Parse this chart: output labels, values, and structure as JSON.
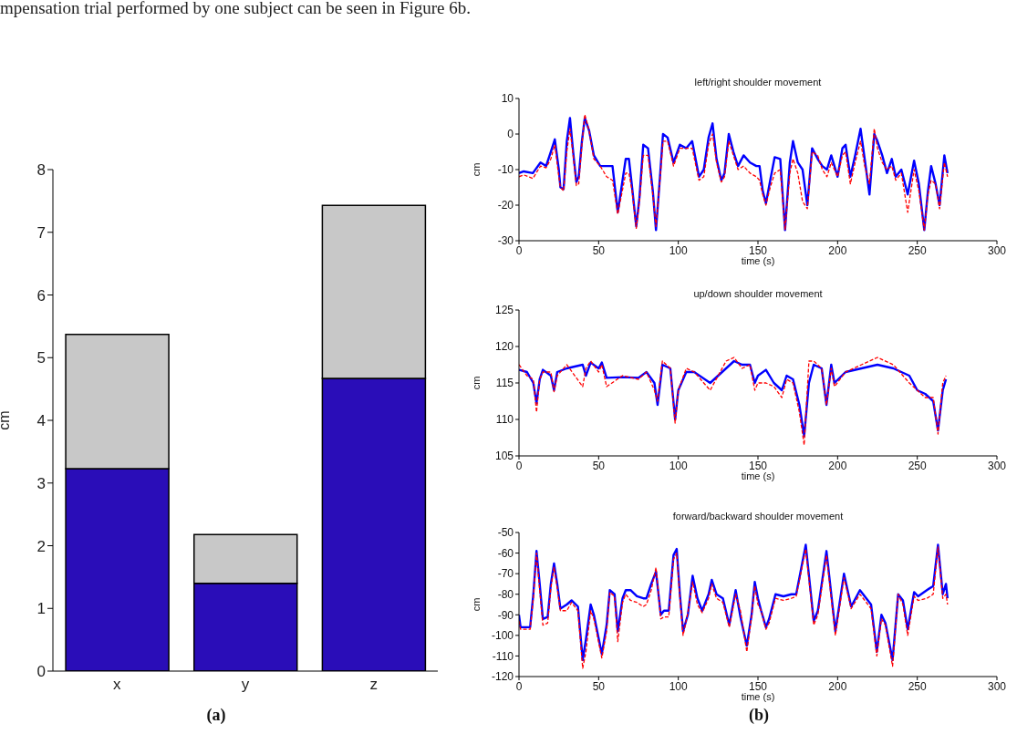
{
  "chart_data": [
    {
      "type": "bar",
      "stacked": true,
      "ylabel": "cm",
      "categories": [
        "x",
        "y",
        "z"
      ],
      "ylim": [
        0,
        8
      ],
      "yticks": [
        0,
        1,
        2,
        3,
        4,
        5,
        6,
        7,
        8
      ],
      "series": [
        {
          "color": "#2a0db8",
          "values": [
            3.23,
            1.4,
            4.67
          ]
        },
        {
          "color": "#c8c8c8",
          "values": [
            2.14,
            0.78,
            2.76
          ]
        }
      ],
      "annotations": [
        "mpensation trial performed by one subject can be seen in Figure 6b.",
        "(a)"
      ]
    },
    {
      "type": "line",
      "title": "left/right shoulder movement",
      "xlabel": "time (s)",
      "ylabel": "cm",
      "xlim": [
        0,
        300
      ],
      "xticks": [
        0,
        50,
        100,
        150,
        200,
        250,
        300
      ],
      "ylim": [
        -30,
        10
      ],
      "yticks": [
        -30,
        -20,
        -10,
        0,
        10
      ],
      "x": [
        0,
        3,
        8.7,
        13.5,
        17,
        20,
        22.5,
        25,
        26,
        28,
        30,
        32,
        34,
        36,
        37.5,
        39.5,
        41.3,
        44,
        47,
        51,
        55,
        58.7,
        62,
        64,
        67,
        69,
        71,
        73.6,
        75.6,
        78,
        81,
        84,
        86,
        88.5,
        90.4,
        93.3,
        97,
        101,
        105,
        108.7,
        113,
        116,
        119,
        121.5,
        124,
        127,
        129,
        131.7,
        134.6,
        137.5,
        141,
        145,
        149,
        151,
        153,
        155,
        157.7,
        160.5,
        164,
        167,
        170,
        172,
        175,
        178,
        181,
        184,
        187.5,
        190.4,
        193.3,
        196,
        200,
        203,
        205,
        208,
        211,
        214.4,
        217,
        220,
        223,
        225,
        228,
        231,
        234,
        236.5,
        240,
        244,
        248,
        251,
        254.4,
        256.7,
        258.7,
        261.5,
        264,
        267,
        269
      ],
      "series": [
        {
          "color": "#0000ff",
          "values": [
            -11,
            -10.5,
            -11,
            -8,
            -9,
            -5,
            -1.5,
            -10,
            -15,
            -15.5,
            -2,
            4.5,
            -5,
            -13.5,
            -12,
            -2,
            4.5,
            1,
            -6,
            -9,
            -9,
            -9,
            -22,
            -16,
            -7,
            -7,
            -15,
            -26,
            -18,
            -3,
            -4,
            -16,
            -27,
            -12,
            0,
            -1,
            -8,
            -3,
            -4,
            -2,
            -12,
            -10,
            -1,
            3,
            -7,
            -13,
            -11,
            0,
            -5,
            -9,
            -6,
            -8,
            -9,
            -9,
            -16,
            -19.5,
            -13,
            -6.5,
            -7,
            -27,
            -8,
            -2,
            -8,
            -10,
            -20,
            -4,
            -7,
            -9,
            -10,
            -6,
            -12,
            -4,
            -3,
            -12,
            -6,
            1.5,
            -7,
            -17,
            0,
            -2,
            -6,
            -11,
            -7,
            -12,
            -10,
            -17,
            -7.5,
            -14,
            -27,
            -16,
            -9,
            -14,
            -20,
            -6,
            -11
          ]
        },
        {
          "color": "#ff0000",
          "line_style": "dashed",
          "values": [
            -12,
            -11.5,
            -12.5,
            -9,
            -9.5,
            -7,
            -3,
            -12,
            -15,
            -16,
            -5,
            1.5,
            -6,
            -14.5,
            -14,
            -3,
            5.5,
            1,
            -7,
            -9,
            -12,
            -13,
            -22.5,
            -18,
            -11,
            -11,
            -16,
            -26.5,
            -19,
            -6,
            -6,
            -17,
            -26,
            -13,
            -2,
            -2,
            -9,
            -4,
            -4,
            -4,
            -13,
            -12,
            -3,
            0,
            -8,
            -13.5,
            -12,
            -2,
            -6,
            -10,
            -9,
            -11,
            -12,
            -13,
            -17,
            -20,
            -15,
            -11,
            -10,
            -27,
            -11,
            -7,
            -11,
            -19,
            -21,
            -5,
            -6,
            -10,
            -12,
            -8,
            -12,
            -6,
            -5,
            -14,
            -8,
            -2,
            -9,
            -14,
            1.5,
            -4,
            -8,
            -10,
            -9,
            -13,
            -11,
            -22,
            -10,
            -16,
            -27,
            -17,
            -13,
            -14,
            -21,
            -8,
            -12
          ]
        }
      ]
    },
    {
      "type": "line",
      "title": "up/down shoulder movement",
      "xlabel": "time (s)",
      "ylabel": "cm",
      "xlim": [
        0,
        300
      ],
      "xticks": [
        0,
        50,
        100,
        150,
        200,
        250,
        300
      ],
      "ylim": [
        105,
        125
      ],
      "yticks": [
        105,
        110,
        115,
        120,
        125
      ],
      "x": [
        0,
        5,
        9,
        11,
        13,
        15,
        20,
        22,
        24,
        30,
        40,
        42,
        45,
        50,
        52,
        55,
        65,
        75,
        80,
        85,
        87,
        90,
        95,
        98,
        100,
        105,
        110,
        120,
        130,
        135,
        140,
        145,
        148,
        150,
        155,
        160,
        165,
        168,
        172,
        176,
        179,
        182,
        185,
        190,
        193,
        196,
        198,
        205,
        215,
        225,
        235,
        245,
        250,
        255,
        260,
        263,
        266,
        268
      ],
      "series": [
        {
          "color": "#0000ff",
          "values": [
            116.8,
            116.5,
            115,
            112.2,
            115.5,
            116.8,
            116,
            114,
            116.5,
            117,
            117.5,
            116,
            117.8,
            117,
            117.8,
            115.7,
            115.8,
            115.7,
            116.5,
            115,
            112,
            117.5,
            117,
            110,
            114,
            116.5,
            116.5,
            115,
            117,
            118,
            117.5,
            117.5,
            115,
            116,
            116.8,
            115,
            114,
            116,
            115.5,
            112,
            107.7,
            115,
            117.5,
            117,
            112,
            117.5,
            115,
            116.5,
            117,
            117.5,
            117,
            116,
            114,
            113.5,
            112.5,
            108.5,
            114,
            115.5
          ]
        },
        {
          "color": "#ff0000",
          "line_style": "dashed",
          "values": [
            117.5,
            116,
            115.5,
            111,
            115.5,
            116.5,
            116.5,
            113.8,
            116,
            117.5,
            114.5,
            117,
            118,
            116.5,
            117.5,
            114.5,
            116,
            115.5,
            116.5,
            114,
            112.5,
            118,
            117,
            109.5,
            114,
            117,
            116.5,
            114,
            118,
            118.5,
            117,
            117.5,
            114,
            115,
            115,
            114.5,
            113,
            115.5,
            115,
            111,
            106.5,
            118,
            118,
            117,
            112,
            117,
            114.5,
            116.5,
            117.5,
            118.5,
            117.5,
            115,
            114,
            113,
            113,
            108,
            115,
            116
          ]
        }
      ]
    },
    {
      "type": "line",
      "title": "forward/backward shoulder movement",
      "xlabel": "time (s)",
      "ylabel": "cm",
      "xlim": [
        0,
        300
      ],
      "xticks": [
        0,
        50,
        100,
        150,
        200,
        250,
        300
      ],
      "ylim": [
        -120,
        -50
      ],
      "yticks": [
        -120,
        -110,
        -100,
        -90,
        -80,
        -70,
        -60,
        -50
      ],
      "x": [
        0,
        1,
        7,
        9,
        11,
        13,
        15,
        18,
        20,
        22,
        24,
        26,
        30,
        33,
        37,
        40,
        42,
        45,
        47,
        52,
        55,
        57,
        60,
        62,
        65,
        67,
        70,
        74,
        78,
        80,
        83,
        86,
        89,
        91,
        94,
        97,
        99,
        101,
        103,
        106,
        109,
        112,
        115,
        119,
        121,
        124,
        128,
        132,
        136,
        139,
        143,
        146,
        148,
        150,
        152,
        155,
        157,
        161,
        166,
        171,
        174,
        180,
        185,
        187.6,
        193,
        198.6,
        204,
        208.5,
        214,
        221,
        224.6,
        227.5,
        230,
        234.5,
        238,
        241,
        244,
        248,
        250.5,
        256,
        260,
        263,
        266,
        268,
        269
      ],
      "series": [
        {
          "color": "#0000ff",
          "values": [
            -90,
            -96,
            -96,
            -80,
            -59,
            -75,
            -92,
            -91,
            -75,
            -65,
            -75,
            -87,
            -85,
            -83,
            -86,
            -112,
            -102,
            -85,
            -90,
            -109,
            -95,
            -78,
            -80,
            -98,
            -82,
            -78,
            -78,
            -81,
            -82,
            -82,
            -75,
            -69,
            -90,
            -88,
            -88,
            -61,
            -58,
            -80,
            -98,
            -90,
            -71,
            -82,
            -88,
            -80,
            -73,
            -80,
            -82,
            -95,
            -78,
            -91,
            -105,
            -90,
            -74,
            -82,
            -88,
            -96,
            -92,
            -80,
            -81,
            -80,
            -80,
            -56,
            -93,
            -88,
            -59,
            -98,
            -70,
            -86,
            -78,
            -85,
            -108,
            -90,
            -94,
            -112,
            -80,
            -83,
            -97,
            -79,
            -81,
            -78,
            -76,
            -56,
            -80,
            -75,
            -82
          ]
        },
        {
          "color": "#ff0000",
          "line_style": "dashed",
          "values": [
            -93,
            -97,
            -97,
            -82,
            -60,
            -78,
            -95,
            -94,
            -77,
            -67,
            -77,
            -88,
            -88,
            -84,
            -88,
            -116,
            -108,
            -88,
            -92,
            -111,
            -98,
            -79,
            -81,
            -103,
            -84,
            -80,
            -83,
            -84,
            -86,
            -85,
            -78,
            -67,
            -92,
            -91,
            -91,
            -63,
            -60,
            -82,
            -100,
            -89,
            -74,
            -85,
            -89,
            -82,
            -75,
            -82,
            -84,
            -96,
            -80,
            -88,
            -108,
            -91,
            -76,
            -85,
            -88,
            -97,
            -94,
            -82,
            -83,
            -82,
            -81,
            -58,
            -95,
            -90,
            -61,
            -100,
            -72,
            -87,
            -80,
            -87,
            -110,
            -92,
            -95,
            -115,
            -80,
            -85,
            -100,
            -81,
            -83,
            -82,
            -80,
            -57,
            -82,
            -80,
            -85
          ]
        }
      ],
      "annotations": [
        "(b)"
      ]
    }
  ]
}
